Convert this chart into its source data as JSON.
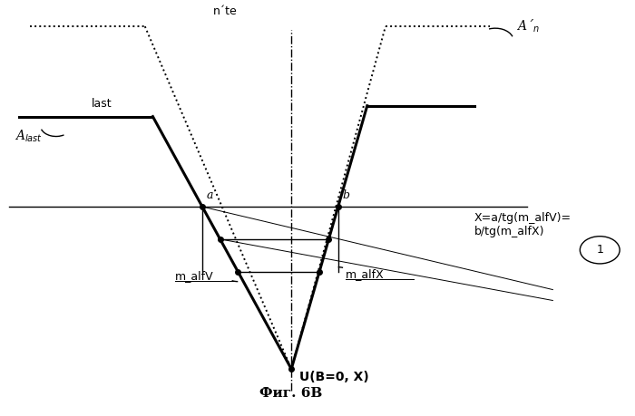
{
  "figsize": [
    7.0,
    4.59
  ],
  "dpi": 100,
  "bg_color": "#ffffff",
  "title": "Фиг. 6В",
  "title_fontsize": 11,
  "xlim": [
    -5.5,
    6.5
  ],
  "ylim": [
    -5.2,
    6.0
  ],
  "U_x": 0.0,
  "U_y": -4.0,
  "horiz_y": 0.5,
  "left_solid_top_x": -4.0,
  "left_solid_top_y": 4.8,
  "left_solid_flat_x1": -5.2,
  "left_solid_flat_y": 3.0,
  "left_solid_flat_x2": -2.65,
  "right_solid_top_x": 1.45,
  "right_solid_top_y": 4.8,
  "right_solid_flat_x1": 1.45,
  "right_solid_flat_x2": 3.5,
  "right_solid_flat_y": 3.3,
  "dot_left_top_x": -2.8,
  "dot_left_top_y": 5.5,
  "dot_left_flat_x": -5.0,
  "dot_right_top_x": 1.8,
  "dot_right_top_y": 5.5,
  "dot_right_flat_x": 3.8,
  "label_Alast": "A$_{last}$",
  "label_nте": "n´te",
  "label_An": "A´$_{n}$",
  "label_last": "last",
  "label_a": "a",
  "label_b": "b",
  "label_U": "U(B=0, X)",
  "label_malfV": "m_alfV",
  "label_malfX": "m_alfX",
  "label_formula": "X=a/tg(m_alfV)=\nb/tg(m_alfX)",
  "label_1": "1",
  "lw_main": 2.2,
  "lw_thin": 1.0,
  "lw_dot": 1.4,
  "fs_label": 9,
  "fs_title": 11
}
